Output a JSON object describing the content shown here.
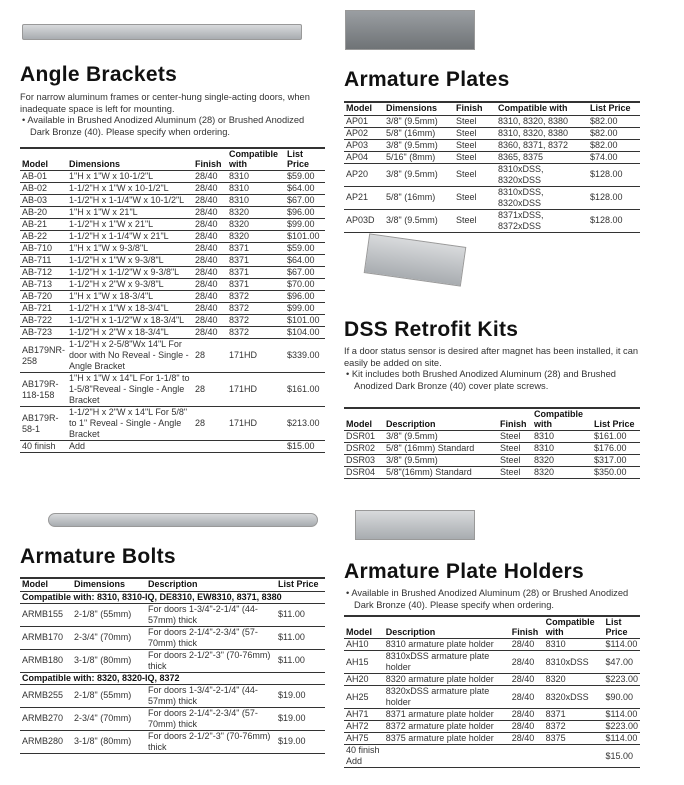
{
  "angle_brackets": {
    "title": "Angle Brackets",
    "intro": "For narrow aluminum frames or center-hung single-acting doors, when inadequate space is left for mounting.",
    "bullet": "• Available in Brushed Anodized Aluminum (28) or Brushed Anodized Dark Bronze (40). Please specify when ordering.",
    "headers": [
      "Model",
      "Dimensions",
      "Finish",
      "Compatible with",
      "List Price"
    ],
    "rows": [
      [
        "AB-01",
        "1\"H x 1\"W x 10-1/2\"L",
        "28/40",
        "8310",
        "$59.00"
      ],
      [
        "AB-02",
        "1-1/2\"H x 1\"W x 10-1/2\"L",
        "28/40",
        "8310",
        "$64.00"
      ],
      [
        "AB-03",
        "1-1/2\"H x 1-1/4\"W x 10-1/2\"L",
        "28/40",
        "8310",
        "$67.00"
      ],
      [
        "AB-20",
        "1\"H x 1\"W x 21\"L",
        "28/40",
        "8320",
        "$96.00"
      ],
      [
        "AB-21",
        "1-1/2\"H x 1\"W x 21\"L",
        "28/40",
        "8320",
        "$99.00"
      ],
      [
        "AB-22",
        "1-1/2\"H x 1-1/4\"W x 21\"L",
        "28/40",
        "8320",
        "$101.00"
      ],
      [
        "AB-710",
        "1\"H x 1\"W x 9-3/8\"L",
        "28/40",
        "8371",
        "$59.00"
      ],
      [
        "AB-711",
        "1-1/2\"H x 1\"W x 9-3/8\"L",
        "28/40",
        "8371",
        "$64.00"
      ],
      [
        "AB-712",
        "1-1/2\"H x 1-1/2\"W x 9-3/8\"L",
        "28/40",
        "8371",
        "$67.00"
      ],
      [
        "AB-713",
        "1-1/2\"H x 2\"W x 9-3/8\"L",
        "28/40",
        "8371",
        "$70.00"
      ],
      [
        "AB-720",
        "1\"H x 1\"W x 18-3/4\"L",
        "28/40",
        "8372",
        "$96.00"
      ],
      [
        "AB-721",
        "1-1/2\"H x 1\"W x 18-3/4\"L",
        "28/40",
        "8372",
        "$99.00"
      ],
      [
        "AB-722",
        "1-1/2\"H x 1-1/2\"W x 18-3/4\"L",
        "28/40",
        "8372",
        "$101.00"
      ],
      [
        "AB-723",
        "1-1/2\"H x 2\"W x 18-3/4\"L",
        "28/40",
        "8372",
        "$104.00"
      ],
      [
        "AB179NR-258",
        "1-1/2\"H x 2-5/8\"Wx 14\"L For door with No Reveal - Single - Angle Bracket",
        "28",
        "171HD",
        "$339.00"
      ],
      [
        "AB179R-118-158",
        "1\"H x 1\"W x 14\"L For 1-1/8\" to 1-5/8\"Reveal - Single - Angle Bracket",
        "28",
        "171HD",
        "$161.00"
      ],
      [
        "AB179R-58-1",
        "1-1/2\"H x 2\"W x 14\"L For 5/8\" to 1\" Reveal - Single - Angle Bracket",
        "28",
        "171HD",
        "$213.00"
      ],
      [
        "40 finish",
        "Add",
        "",
        "",
        "$15.00"
      ]
    ]
  },
  "armature_bolts": {
    "title": "Armature Bolts",
    "headers": [
      "Model",
      "Dimensions",
      "Description",
      "List Price"
    ],
    "groups": [
      {
        "label": "Compatible with: 8310, 8310-IQ, DE8310, EW8310, 8371, 8380",
        "rows": [
          [
            "ARMB155",
            "2-1/8\" (55mm)",
            "For doors 1-3/4\"-2-1/4\" (44-57mm) thick",
            "$11.00"
          ],
          [
            "ARMB170",
            "2-3/4\" (70mm)",
            "For doors 2-1/4\"-2-3/4\" (57-70mm) thick",
            "$11.00"
          ],
          [
            "ARMB180",
            "3-1/8\" (80mm)",
            "For doors 2-1/2\"-3\" (70-76mm) thick",
            "$11.00"
          ]
        ]
      },
      {
        "label": "Compatible with: 8320, 8320-IQ, 8372",
        "rows": [
          [
            "ARMB255",
            "2-1/8\" (55mm)",
            "For doors 1-3/4\"-2-1/4\" (44-57mm) thick",
            "$19.00"
          ],
          [
            "ARMB270",
            "2-3/4\" (70mm)",
            "For doors 2-1/4\"-2-3/4\" (57-70mm) thick",
            "$19.00"
          ],
          [
            "ARMB280",
            "3-1/8\" (80mm)",
            "For doors 2-1/2\"-3\" (70-76mm) thick",
            "$19.00"
          ]
        ]
      }
    ]
  },
  "armature_plates": {
    "title": "Armature Plates",
    "headers": [
      "Model",
      "Dimensions",
      "Finish",
      "Compatible with",
      "List Price"
    ],
    "rows": [
      [
        "AP01",
        "3/8\" (9.5mm)",
        "Steel",
        "8310, 8320, 8380",
        "$82.00"
      ],
      [
        "AP02",
        "5/8\" (16mm)",
        "Steel",
        "8310, 8320, 8380",
        "$82.00"
      ],
      [
        "AP03",
        "3/8\" (9.5mm)",
        "Steel",
        "8360, 8371, 8372",
        "$82.00"
      ],
      [
        "AP04",
        "5/16\" (8mm)",
        "Steel",
        "8365, 8375",
        "$74.00"
      ],
      [
        "AP20",
        "3/8\" (9.5mm)",
        "Steel",
        "8310xDSS, 8320xDSS",
        "$128.00"
      ],
      [
        "AP21",
        "5/8\" (16mm)",
        "Steel",
        "8310xDSS, 8320xDSS",
        "$128.00"
      ],
      [
        "AP03D",
        "3/8\" (9.5mm)",
        "Steel",
        "8371xDSS, 8372xDSS",
        "$128.00"
      ]
    ]
  },
  "dss_kits": {
    "title": "DSS Retrofit Kits",
    "intro": "If a door status sensor is desired after magnet has been installed, it can easily be added on site.",
    "bullet": "• Kit includes both Brushed Anodized Aluminum (28) and Brushed Anodized Dark Bronze (40) cover plate screws.",
    "headers": [
      "Model",
      "Description",
      "Finish",
      "Compatible with",
      "List Price"
    ],
    "rows": [
      [
        "DSR01",
        "3/8\" (9.5mm)",
        "Steel",
        "8310",
        "$161.00"
      ],
      [
        "DSR02",
        "5/8\" (16mm) Standard",
        "Steel",
        "8310",
        "$176.00"
      ],
      [
        "DSR03",
        "3/8\" (9.5mm)",
        "Steel",
        "8320",
        "$317.00"
      ],
      [
        "DSR04",
        "5/8\"(16mm) Standard",
        "Steel",
        "8320",
        "$350.00"
      ]
    ]
  },
  "plate_holders": {
    "title": "Armature Plate Holders",
    "bullet": "• Available in Brushed Anodized Aluminum (28) or Brushed Anodized Dark Bronze (40). Please specify when ordering.",
    "headers": [
      "Model",
      "Description",
      "Finish",
      "Compatible with",
      "List Price"
    ],
    "rows": [
      [
        "AH10",
        "8310 armature plate holder",
        "28/40",
        "8310",
        "$114.00"
      ],
      [
        "AH15",
        "8310xDSS armature plate holder",
        "28/40",
        "8310xDSS",
        "$47.00"
      ],
      [
        "AH20",
        "8320 armature plate holder",
        "28/40",
        "8320",
        "$223.00"
      ],
      [
        "AH25",
        "8320xDSS armature plate holder",
        "28/40",
        "8320xDSS",
        "$90.00"
      ],
      [
        "AH71",
        "8371 armature plate holder",
        "28/40",
        "8371",
        "$114.00"
      ],
      [
        "AH72",
        "8372 armature plate holder",
        "28/40",
        "8372",
        "$223.00"
      ],
      [
        "AH75",
        "8375 armature plate holder",
        "28/40",
        "8375",
        "$114.00"
      ],
      [
        "40 finish Add",
        "",
        "",
        "",
        "$15.00"
      ]
    ]
  }
}
